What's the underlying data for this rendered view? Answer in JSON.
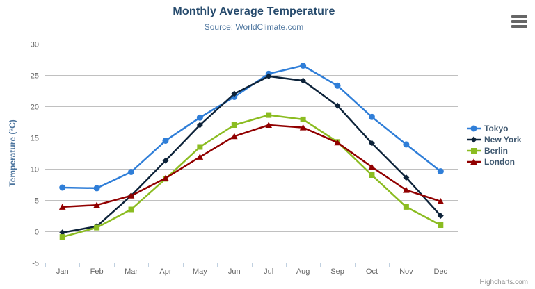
{
  "chart": {
    "title": "Monthly Average Temperature",
    "subtitle": "Source: WorldClimate.com"
  },
  "credits": "Highcharts.com",
  "chart_data": {
    "type": "line",
    "title": "Monthly Average Temperature",
    "subtitle": "Source: WorldClimate.com",
    "xlabel": "",
    "ylabel": "Temperature (°C)",
    "ylim": [
      -5,
      30
    ],
    "ytick_step": 5,
    "grid": true,
    "legend_position": "right",
    "categories": [
      "Jan",
      "Feb",
      "Mar",
      "Apr",
      "May",
      "Jun",
      "Jul",
      "Aug",
      "Sep",
      "Oct",
      "Nov",
      "Dec"
    ],
    "series": [
      {
        "name": "Tokyo",
        "color": "#2f7ed8",
        "marker": "circle",
        "values": [
          7.0,
          6.9,
          9.5,
          14.5,
          18.2,
          21.5,
          25.2,
          26.5,
          23.3,
          18.3,
          13.9,
          9.6
        ]
      },
      {
        "name": "New York",
        "color": "#0d233a",
        "marker": "diamond",
        "values": [
          -0.2,
          0.8,
          5.7,
          11.3,
          17.0,
          22.0,
          24.8,
          24.1,
          20.1,
          14.1,
          8.6,
          2.5
        ]
      },
      {
        "name": "Berlin",
        "color": "#8bbc21",
        "marker": "square",
        "values": [
          -0.9,
          0.6,
          3.5,
          8.4,
          13.5,
          17.0,
          18.6,
          17.9,
          14.3,
          9.0,
          3.9,
          1.0
        ]
      },
      {
        "name": "London",
        "color": "#910000",
        "marker": "triangle",
        "values": [
          3.9,
          4.2,
          5.7,
          8.5,
          11.9,
          15.2,
          17.0,
          16.6,
          14.2,
          10.3,
          6.6,
          4.8
        ]
      }
    ]
  },
  "styles": {
    "title_color": "#274b6d",
    "subtitle_color": "#4d759e",
    "axis_label_color": "#666666",
    "axis_title_color": "#4d759e",
    "grid_color": "#c0c0c0",
    "axis_line_color": "#c0d0e0",
    "legend_text_color": "#3e576f",
    "credits_color": "#909090",
    "menu_icon_color": "#666666"
  }
}
